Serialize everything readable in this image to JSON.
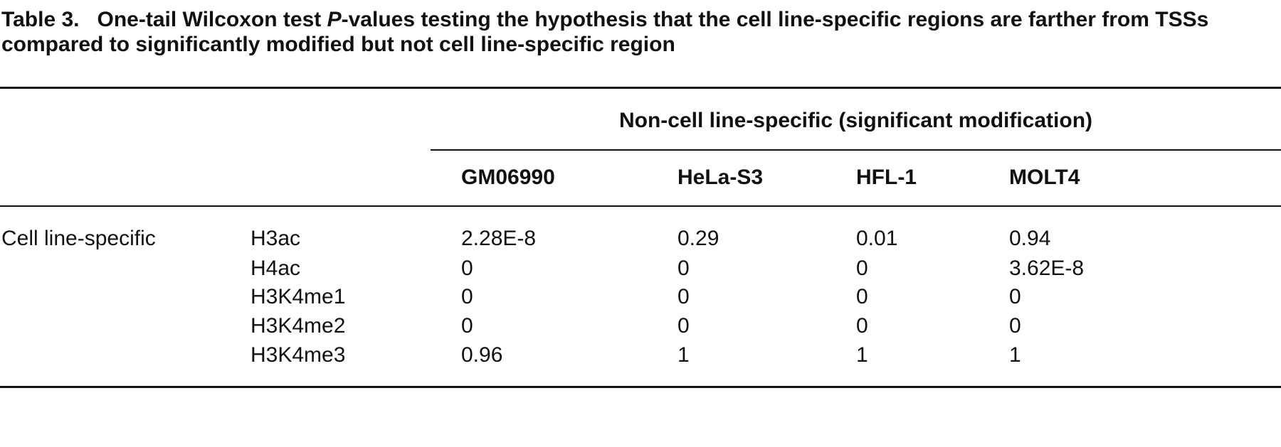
{
  "caption": {
    "label": "Table 3.",
    "text_before": "One-tail Wilcoxon test ",
    "italic": "P",
    "text_after": "-values testing the hypothesis that the cell line-specific regions are farther from TSSs compared to significantly modified but not cell line-specific region"
  },
  "table": {
    "spanning_header": "Non-cell line-specific (significant modification)",
    "columns": [
      "GM06990",
      "HeLa-S3",
      "HFL-1",
      "MOLT4"
    ],
    "group": "Cell line-specific",
    "rows": [
      {
        "modification": "H3ac",
        "values": [
          "2.28E-8",
          "0.29",
          "0.01",
          "0.94"
        ]
      },
      {
        "modification": "H4ac",
        "values": [
          "0",
          "0",
          "0",
          "3.62E-8"
        ]
      },
      {
        "modification": "H3K4me1",
        "values": [
          "0",
          "0",
          "0",
          "0"
        ]
      },
      {
        "modification": "H3K4me2",
        "values": [
          "0",
          "0",
          "0",
          "0"
        ]
      },
      {
        "modification": "H3K4me3",
        "values": [
          "0.96",
          "1",
          "1",
          "1"
        ]
      }
    ]
  }
}
